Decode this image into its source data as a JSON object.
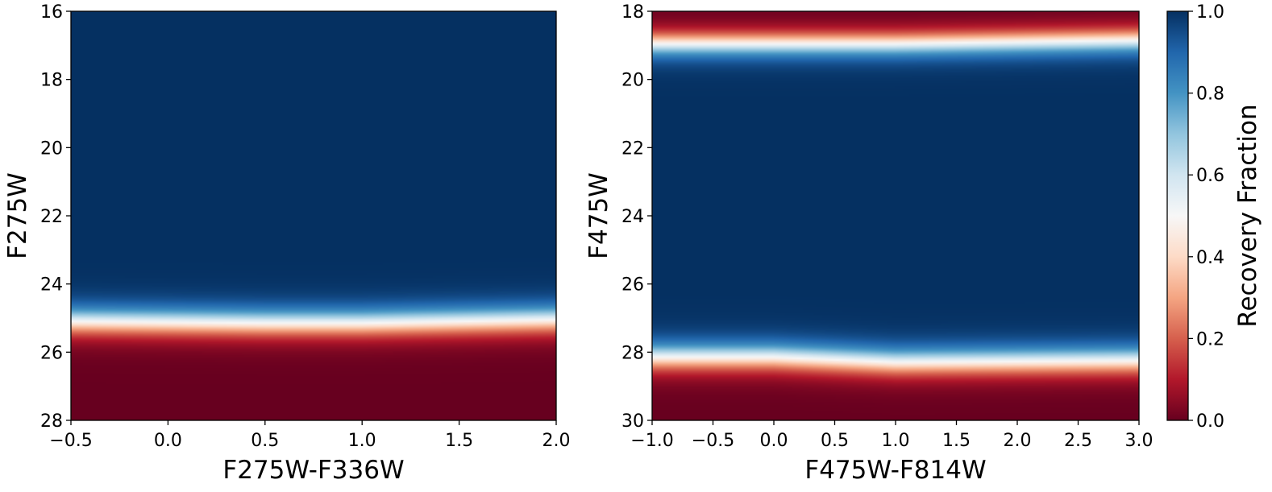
{
  "chart_data": [
    {
      "type": "heatmap",
      "title": "",
      "xlabel": "F275W-F336W",
      "ylabel": "F275W",
      "xlim": [
        -0.5,
        2.0
      ],
      "ylim": [
        28,
        16
      ],
      "y_inverted": true,
      "xticks": [
        "−0.5",
        "0.0",
        "0.5",
        "1.0",
        "1.5",
        "2.0"
      ],
      "xtick_values": [
        -0.5,
        0.0,
        0.5,
        1.0,
        1.5,
        2.0
      ],
      "yticks": [
        "16",
        "18",
        "20",
        "22",
        "24",
        "26",
        "28"
      ],
      "ytick_values": [
        16,
        18,
        20,
        22,
        24,
        26,
        28
      ],
      "colormap": "RdBu",
      "value_range": [
        0.0,
        1.0
      ],
      "transitions": [
        {
          "x": -0.5,
          "mag_50pct": 25.1,
          "width": 0.25
        },
        {
          "x": 0.5,
          "mag_50pct": 25.15,
          "width": 0.25
        },
        {
          "x": 1.0,
          "mag_50pct": 25.15,
          "width": 0.25
        },
        {
          "x": 2.0,
          "mag_50pct": 25.05,
          "width": 0.25
        }
      ],
      "transition_direction": "faint_side_low"
    },
    {
      "type": "heatmap",
      "title": "",
      "xlabel": "F475W-F814W",
      "ylabel": "F475W",
      "xlim": [
        -1.0,
        3.0
      ],
      "ylim": [
        30,
        18
      ],
      "y_inverted": true,
      "xticks": [
        "−1.0",
        "−0.5",
        "0.0",
        "0.5",
        "1.0",
        "1.5",
        "2.0",
        "2.5",
        "3.0"
      ],
      "xtick_values": [
        -1.0,
        -0.5,
        0.0,
        0.5,
        1.0,
        1.5,
        2.0,
        2.5,
        3.0
      ],
      "yticks": [
        "18",
        "20",
        "22",
        "24",
        "26",
        "28",
        "30"
      ],
      "ytick_values": [
        18,
        20,
        22,
        24,
        26,
        28,
        30
      ],
      "colormap": "RdBu",
      "value_range": [
        0.0,
        1.0
      ],
      "bright_transitions": [
        {
          "x": -1.0,
          "mag_50pct": 18.95,
          "width": 0.22
        },
        {
          "x": 1.0,
          "mag_50pct": 18.95,
          "width": 0.22
        },
        {
          "x": 3.0,
          "mag_50pct": 18.85,
          "width": 0.22
        }
      ],
      "faint_transitions": [
        {
          "x": -1.0,
          "mag_50pct": 28.15,
          "width": 0.25
        },
        {
          "x": 0.0,
          "mag_50pct": 28.15,
          "width": 0.25
        },
        {
          "x": 1.0,
          "mag_50pct": 28.3,
          "width": 0.25
        },
        {
          "x": 3.0,
          "mag_50pct": 28.25,
          "width": 0.25
        }
      ]
    }
  ],
  "colorbar": {
    "label": "Recovery Fraction",
    "ticks": [
      "0.0",
      "0.2",
      "0.4",
      "0.6",
      "0.8",
      "1.0"
    ],
    "tick_values": [
      0.0,
      0.2,
      0.4,
      0.6,
      0.8,
      1.0
    ],
    "colormap": "RdBu"
  }
}
